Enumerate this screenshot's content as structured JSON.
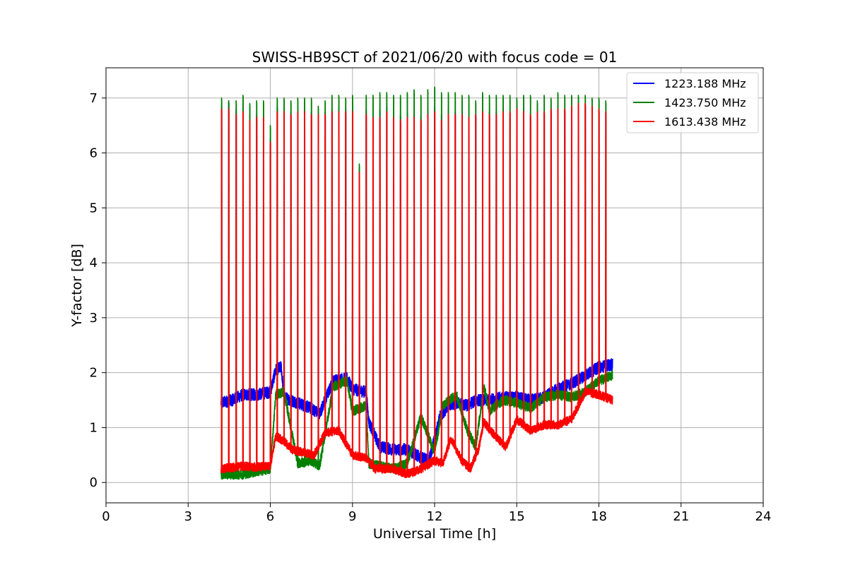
{
  "chart_data": {
    "type": "line",
    "title": "SWISS-HB9SCT of 2021/06/20 with focus code = 01",
    "xlabel": "Universal Time [h]",
    "ylabel": "Y-factor [dB]",
    "xlim": [
      0,
      24
    ],
    "ylim": [
      -0.37,
      7.55
    ],
    "xticks": [
      0,
      3,
      6,
      9,
      12,
      15,
      18,
      21,
      24
    ],
    "yticks": [
      0,
      1,
      2,
      3,
      4,
      5,
      6,
      7
    ],
    "grid": true,
    "legend_position": "top-right",
    "calibration_peaks_hours": [
      4.22,
      4.48,
      4.75,
      5.0,
      5.25,
      5.5,
      5.75,
      6.0,
      6.25,
      6.5,
      6.75,
      7.0,
      7.25,
      7.5,
      7.75,
      8.0,
      8.25,
      8.5,
      8.75,
      9.0,
      9.25,
      9.5,
      9.75,
      10.0,
      10.25,
      10.5,
      10.75,
      11.0,
      11.25,
      11.5,
      11.75,
      12.0,
      12.25,
      12.5,
      12.75,
      13.0,
      13.25,
      13.5,
      13.75,
      14.0,
      14.25,
      14.5,
      14.75,
      15.0,
      15.25,
      15.5,
      15.75,
      16.0,
      16.25,
      16.5,
      16.75,
      17.0,
      17.25,
      17.5,
      17.75,
      18.0,
      18.25
    ],
    "series": [
      {
        "name": "1223.188 MHz",
        "color": "#0000ff",
        "peak_values": [
          6.85,
          6.95,
          6.8,
          6.85,
          6.7,
          6.7,
          6.7,
          6.25,
          6.85,
          6.8,
          6.75,
          6.8,
          6.8,
          6.75,
          6.75,
          6.75,
          6.8,
          6.8,
          6.8,
          6.85,
          5.7,
          6.8,
          6.7,
          6.8,
          6.85,
          6.7,
          6.7,
          6.75,
          6.7,
          6.65,
          6.8,
          6.85,
          6.7,
          6.8,
          6.75,
          6.75,
          6.65,
          6.7,
          6.8,
          6.75,
          6.75,
          6.8,
          6.75,
          6.85,
          6.8,
          6.7,
          6.8,
          6.75,
          6.8,
          6.85,
          6.8,
          6.85,
          6.9,
          6.9,
          6.85,
          6.8,
          6.75
        ],
        "baseline": [
          [
            4.2,
            1.45
          ],
          [
            4.6,
            1.5
          ],
          [
            5.0,
            1.6
          ],
          [
            5.5,
            1.6
          ],
          [
            6.0,
            1.65
          ],
          [
            6.2,
            2.05
          ],
          [
            6.4,
            2.1
          ],
          [
            6.5,
            1.55
          ],
          [
            7.0,
            1.45
          ],
          [
            7.5,
            1.35
          ],
          [
            7.8,
            1.25
          ],
          [
            8.0,
            1.5
          ],
          [
            8.3,
            1.85
          ],
          [
            8.8,
            1.9
          ],
          [
            9.0,
            1.7
          ],
          [
            9.5,
            1.65
          ],
          [
            9.6,
            1.1
          ],
          [
            10.0,
            0.65
          ],
          [
            10.5,
            0.6
          ],
          [
            11.0,
            0.6
          ],
          [
            11.5,
            0.45
          ],
          [
            11.8,
            0.4
          ],
          [
            12.2,
            1.2
          ],
          [
            12.5,
            1.4
          ],
          [
            12.8,
            1.45
          ],
          [
            13.2,
            1.4
          ],
          [
            13.5,
            1.5
          ],
          [
            14.0,
            1.5
          ],
          [
            14.5,
            1.55
          ],
          [
            15.0,
            1.55
          ],
          [
            15.5,
            1.5
          ],
          [
            16.0,
            1.55
          ],
          [
            16.5,
            1.7
          ],
          [
            17.0,
            1.8
          ],
          [
            17.5,
            1.95
          ],
          [
            18.0,
            2.1
          ],
          [
            18.5,
            2.15
          ]
        ]
      },
      {
        "name": "1423.750 MHz",
        "color": "#008000",
        "peak_values": [
          7.0,
          6.95,
          6.95,
          7.05,
          6.9,
          6.95,
          6.95,
          6.5,
          7.0,
          7.0,
          6.95,
          7.0,
          7.0,
          7.0,
          6.85,
          6.95,
          7.05,
          7.05,
          7.0,
          7.05,
          5.8,
          7.05,
          7.05,
          7.1,
          7.1,
          7.05,
          7.05,
          7.1,
          7.15,
          7.05,
          7.15,
          7.2,
          7.1,
          7.1,
          7.1,
          7.05,
          7.05,
          6.95,
          7.1,
          7.05,
          7.05,
          7.05,
          7.05,
          7.0,
          7.05,
          7.05,
          6.95,
          7.05,
          7.0,
          7.1,
          7.05,
          7.05,
          7.05,
          7.05,
          7.0,
          7.0,
          6.95
        ],
        "baseline": [
          [
            4.2,
            0.15
          ],
          [
            5.0,
            0.15
          ],
          [
            6.0,
            0.25
          ],
          [
            6.2,
            1.6
          ],
          [
            6.5,
            1.65
          ],
          [
            7.0,
            0.35
          ],
          [
            7.5,
            0.4
          ],
          [
            7.8,
            0.3
          ],
          [
            8.3,
            1.75
          ],
          [
            8.8,
            1.85
          ],
          [
            9.0,
            1.3
          ],
          [
            9.5,
            1.4
          ],
          [
            9.6,
            0.35
          ],
          [
            10.0,
            0.3
          ],
          [
            10.5,
            0.25
          ],
          [
            11.0,
            0.35
          ],
          [
            11.5,
            1.2
          ],
          [
            12.0,
            0.55
          ],
          [
            12.3,
            1.4
          ],
          [
            12.8,
            1.6
          ],
          [
            13.2,
            0.95
          ],
          [
            13.5,
            0.65
          ],
          [
            13.8,
            1.75
          ],
          [
            14.0,
            1.3
          ],
          [
            14.5,
            1.5
          ],
          [
            15.0,
            1.45
          ],
          [
            15.5,
            1.35
          ],
          [
            16.0,
            1.55
          ],
          [
            16.5,
            1.6
          ],
          [
            17.0,
            1.55
          ],
          [
            17.5,
            1.65
          ],
          [
            18.0,
            1.85
          ],
          [
            18.5,
            1.95
          ]
        ]
      },
      {
        "name": "1613.438 MHz",
        "color": "#ff0000",
        "peak_values": [
          6.8,
          6.8,
          6.7,
          6.75,
          6.6,
          6.65,
          6.65,
          6.2,
          6.75,
          6.75,
          6.7,
          6.75,
          6.75,
          6.7,
          6.7,
          6.7,
          6.75,
          6.75,
          6.75,
          6.75,
          5.65,
          6.7,
          6.65,
          6.65,
          6.75,
          6.65,
          6.6,
          6.65,
          6.65,
          6.6,
          6.7,
          6.75,
          6.6,
          6.7,
          6.7,
          6.7,
          6.65,
          6.7,
          6.75,
          6.7,
          6.7,
          6.75,
          6.75,
          6.8,
          6.75,
          6.7,
          6.75,
          6.75,
          6.8,
          6.8,
          6.8,
          6.85,
          6.9,
          6.9,
          6.85,
          6.8,
          6.75
        ],
        "baseline": [
          [
            4.2,
            0.25
          ],
          [
            5.0,
            0.3
          ],
          [
            5.5,
            0.28
          ],
          [
            6.0,
            0.3
          ],
          [
            6.2,
            0.85
          ],
          [
            6.5,
            0.75
          ],
          [
            6.8,
            0.6
          ],
          [
            7.2,
            0.55
          ],
          [
            7.6,
            0.5
          ],
          [
            8.0,
            0.9
          ],
          [
            8.5,
            0.95
          ],
          [
            9.0,
            0.5
          ],
          [
            9.5,
            0.45
          ],
          [
            9.8,
            0.25
          ],
          [
            10.5,
            0.25
          ],
          [
            11.0,
            0.15
          ],
          [
            11.5,
            0.25
          ],
          [
            12.0,
            0.4
          ],
          [
            12.3,
            0.35
          ],
          [
            12.6,
            0.8
          ],
          [
            13.0,
            0.4
          ],
          [
            13.3,
            0.25
          ],
          [
            13.6,
            0.6
          ],
          [
            13.8,
            1.1
          ],
          [
            14.2,
            0.85
          ],
          [
            14.6,
            0.65
          ],
          [
            15.0,
            1.15
          ],
          [
            15.5,
            0.95
          ],
          [
            16.0,
            1.05
          ],
          [
            16.5,
            1.05
          ],
          [
            17.0,
            1.15
          ],
          [
            17.5,
            1.65
          ],
          [
            18.0,
            1.6
          ],
          [
            18.5,
            1.5
          ]
        ]
      }
    ]
  }
}
